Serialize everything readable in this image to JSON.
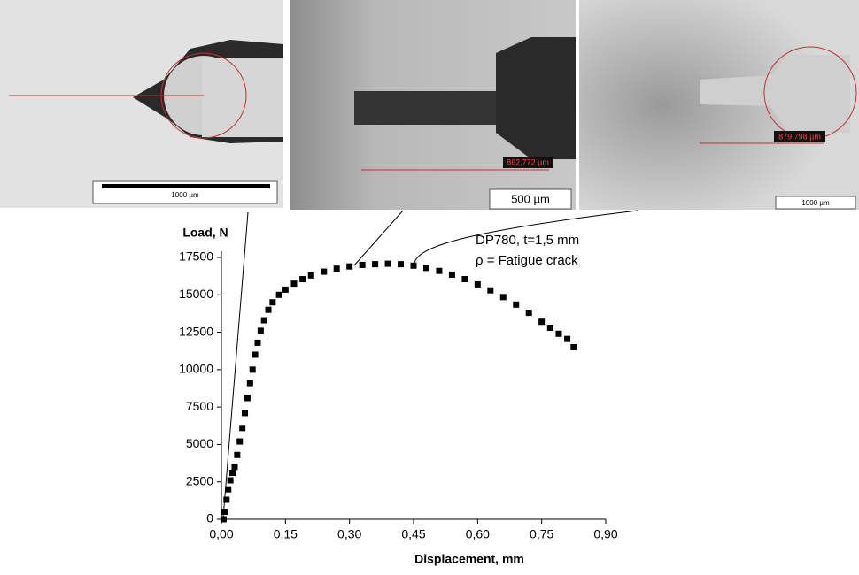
{
  "chart_data": {
    "type": "scatter",
    "annotations": [
      "DP780, t=1,5 mm",
      "ρ = Fatigue crack"
    ],
    "x_label": "Displacement, mm",
    "y_label": "Load, N",
    "x": [
      0.005,
      0.008,
      0.012,
      0.016,
      0.021,
      0.026,
      0.031,
      0.037,
      0.043,
      0.049,
      0.055,
      0.061,
      0.067,
      0.073,
      0.079,
      0.085,
      0.092,
      0.1,
      0.11,
      0.12,
      0.135,
      0.15,
      0.17,
      0.19,
      0.21,
      0.24,
      0.27,
      0.3,
      0.33,
      0.36,
      0.39,
      0.42,
      0.45,
      0.48,
      0.51,
      0.54,
      0.57,
      0.6,
      0.63,
      0.66,
      0.69,
      0.72,
      0.75,
      0.77,
      0.79,
      0.81,
      0.825
    ],
    "values": [
      0,
      500,
      1300,
      2000,
      2600,
      3100,
      3500,
      4300,
      5200,
      6100,
      7100,
      8100,
      9100,
      10000,
      11000,
      11800,
      12600,
      13300,
      14000,
      14500,
      15000,
      15350,
      15750,
      16050,
      16300,
      16550,
      16750,
      16900,
      17000,
      17050,
      17080,
      17050,
      16950,
      16800,
      16600,
      16350,
      16050,
      15700,
      15300,
      14850,
      14350,
      13800,
      13200,
      12800,
      12400,
      12050,
      11500
    ],
    "color": "#000000",
    "xlim": [
      0,
      0.9
    ],
    "xticks": [
      {
        "value": 0,
        "label": "0,00"
      },
      {
        "value": 0.15,
        "label": "0,15"
      },
      {
        "value": 0.3,
        "label": "0,30"
      },
      {
        "value": 0.45,
        "label": "0,45"
      },
      {
        "value": 0.6,
        "label": "0,60"
      },
      {
        "value": 0.75,
        "label": "0,75"
      },
      {
        "value": 0.9,
        "label": "0,90"
      }
    ],
    "ylim": [
      0,
      17500
    ],
    "yticks": [
      0,
      2500,
      5000,
      7500,
      10000,
      12500,
      15000,
      17500
    ]
  },
  "micrographs": [
    {
      "scale_label": "1000 µm"
    },
    {
      "scale_label": "500 µm",
      "measure_label": "862,772 µm"
    },
    {
      "scale_label": "1000 µm",
      "measure_label": "879,798 µm"
    }
  ]
}
